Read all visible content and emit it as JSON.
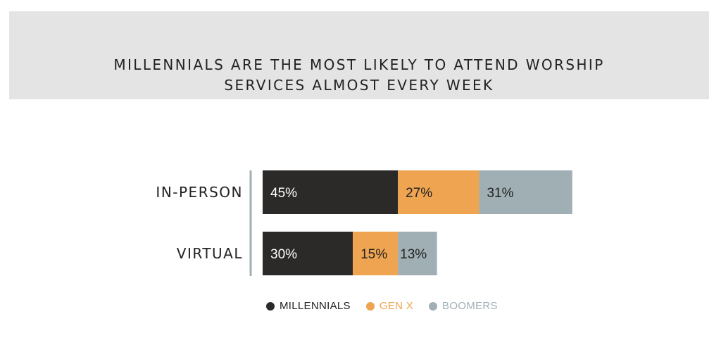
{
  "chart_data": {
    "type": "bar",
    "orientation": "horizontal",
    "stacked": true,
    "title": "MILLENNIALS ARE THE MOST LIKELY TO ATTEND WORSHIP\nSERVICES ALMOST EVERY WEEK",
    "categories": [
      "IN-PERSON",
      "VIRTUAL"
    ],
    "series": [
      {
        "name": "MILLENNIALS",
        "values": [
          45,
          30
        ],
        "labels": [
          "45%",
          "30%"
        ],
        "color": "#2b2a29",
        "label_color": "#ffffff"
      },
      {
        "name": "GEN X",
        "values": [
          27,
          15
        ],
        "labels": [
          "27%",
          "15%"
        ],
        "color": "#eea450",
        "label_color": "#222222"
      },
      {
        "name": "BOOMERS",
        "values": [
          31,
          13
        ],
        "labels": [
          "31%",
          "13%"
        ],
        "color": "#a0afb4",
        "label_color": "#222222"
      }
    ],
    "unit": "%",
    "legend_position": "bottom",
    "grid": false,
    "xlabel": "",
    "ylabel": ""
  },
  "colors": {
    "title_band": "#e4e4e4",
    "axis_line": "#a0afb4",
    "text": "#222222"
  }
}
